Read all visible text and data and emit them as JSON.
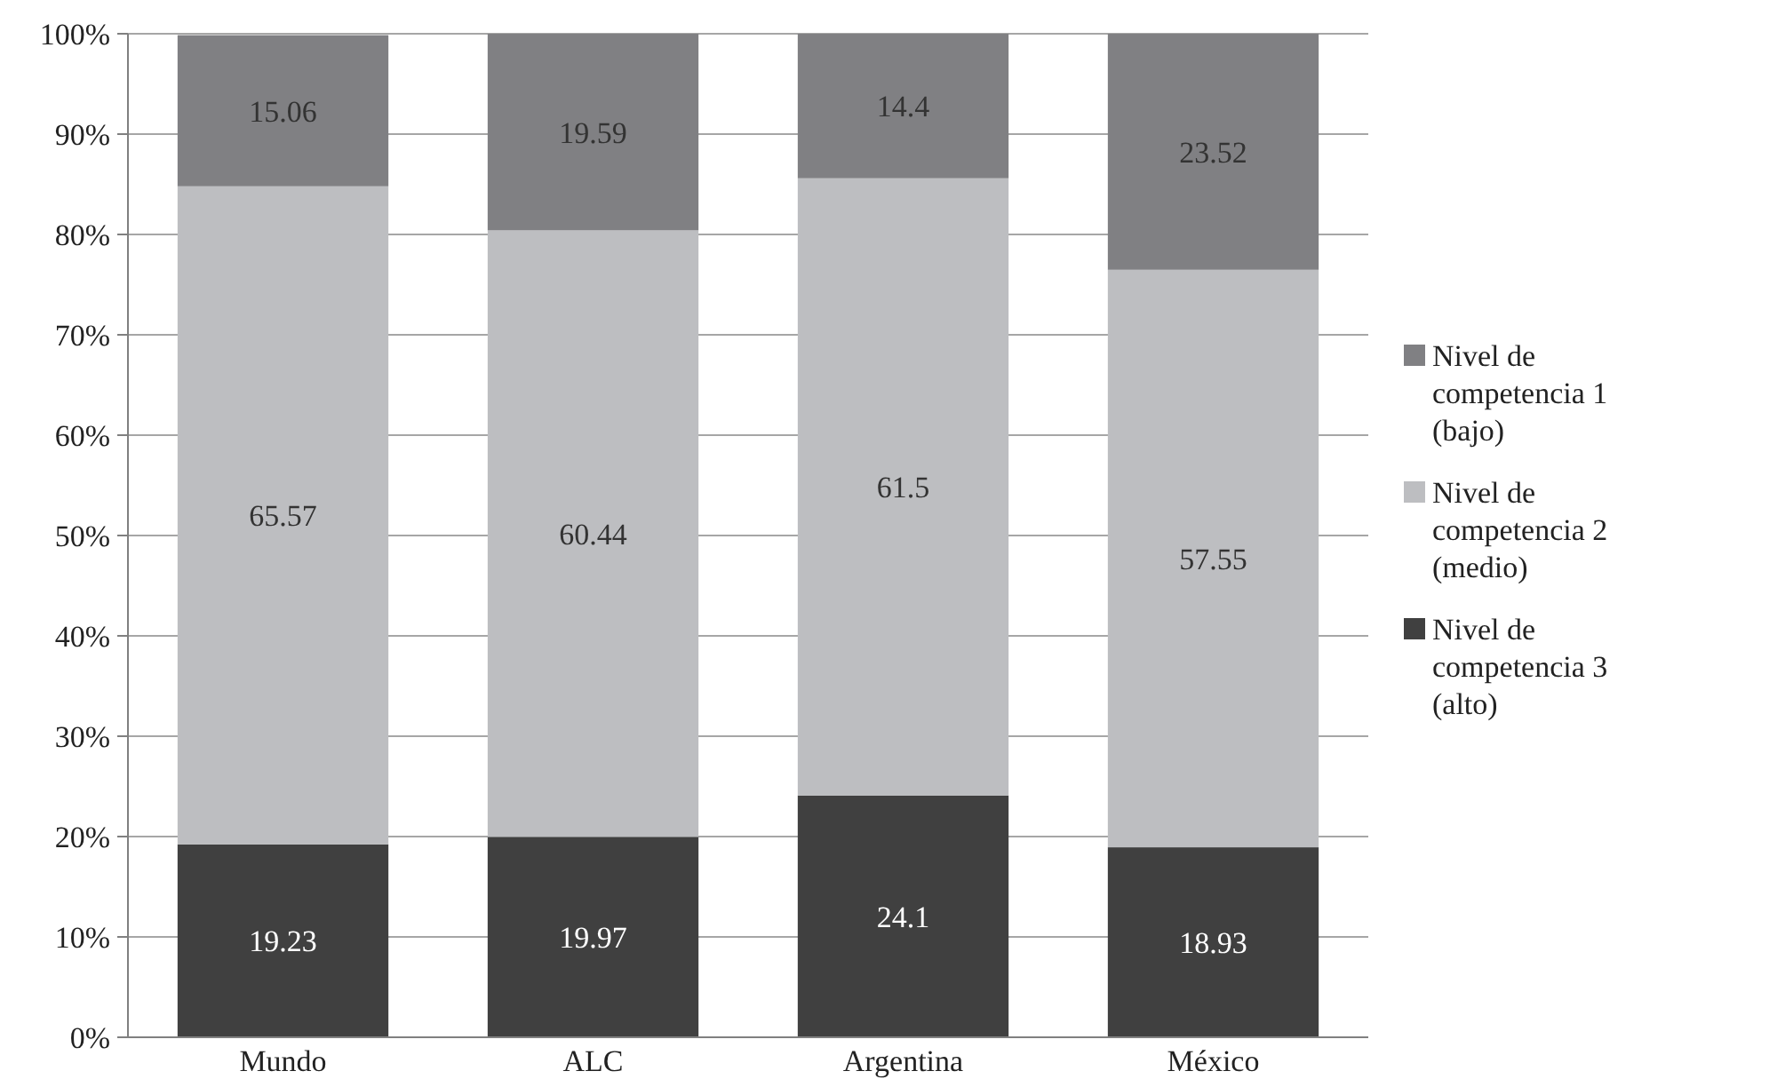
{
  "chart_data": {
    "type": "bar",
    "stacked": true,
    "categories": [
      "Mundo",
      "ALC",
      "Argentina",
      "México"
    ],
    "series": [
      {
        "name": "Nivel de competencia 3 (alto)",
        "color": "#404040",
        "values": [
          19.23,
          19.97,
          24.1,
          18.93
        ]
      },
      {
        "name": "Nivel de competencia 2 (medio)",
        "color": "#bdbec1",
        "values": [
          65.57,
          60.44,
          61.5,
          57.55
        ]
      },
      {
        "name": "Nivel de competencia 1 (bajo)",
        "color": "#808083",
        "values": [
          15.06,
          19.59,
          14.4,
          23.52
        ]
      }
    ],
    "ylim": [
      0,
      100
    ],
    "yticks": [
      {
        "value": 0,
        "label": "0%"
      },
      {
        "value": 10,
        "label": "10%"
      },
      {
        "value": 20,
        "label": "20%"
      },
      {
        "value": 30,
        "label": "30%"
      },
      {
        "value": 40,
        "label": "40%"
      },
      {
        "value": 50,
        "label": "50%"
      },
      {
        "value": 60,
        "label": "60%"
      },
      {
        "value": 70,
        "label": "70%"
      },
      {
        "value": 80,
        "label": "80%"
      },
      {
        "value": 90,
        "label": "90%"
      },
      {
        "value": 100,
        "label": "100%"
      }
    ],
    "grid": "y",
    "legend": "right",
    "data_labels": true
  }
}
